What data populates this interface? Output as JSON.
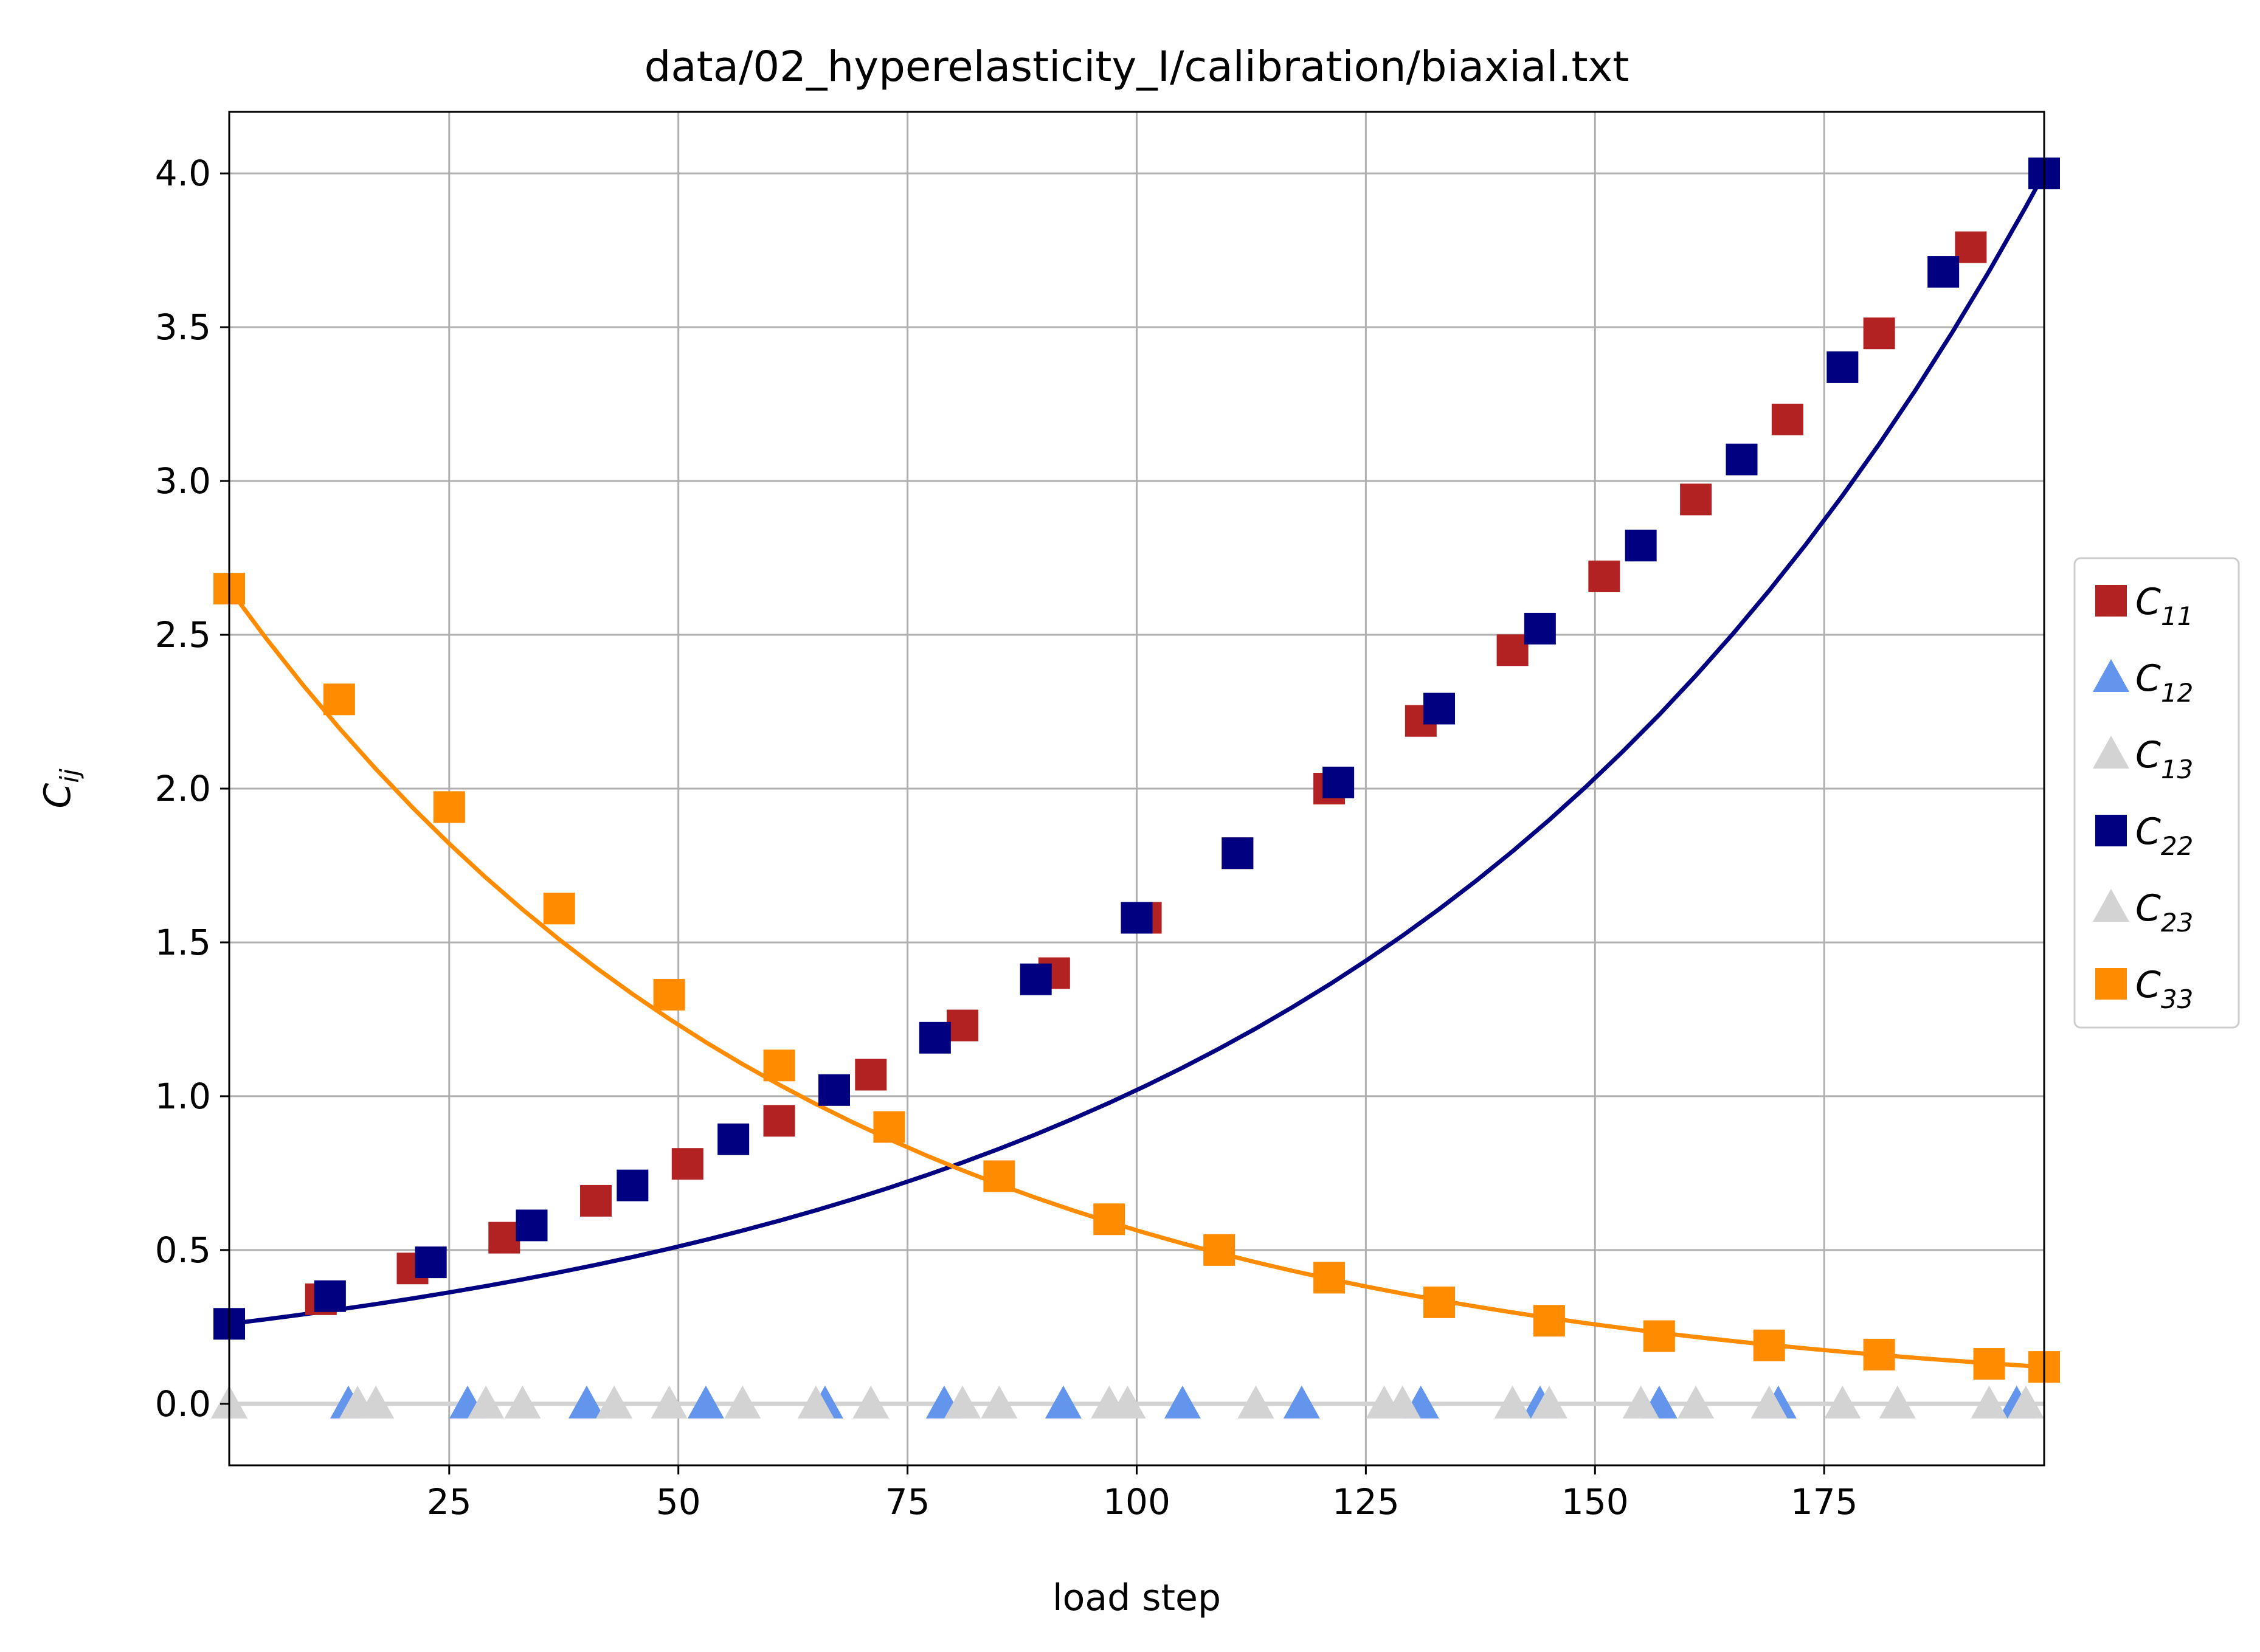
{
  "chart_data": {
    "type": "line",
    "title": "data/02_hyperelasticity_I/calibration/biaxial.txt",
    "xlabel": "load step",
    "ylabel": {
      "base": "C",
      "sub": "ij"
    },
    "xlim": [
      1,
      199
    ],
    "ylim": [
      -0.2,
      4.2
    ],
    "xticks": [
      25,
      50,
      75,
      100,
      125,
      150,
      175
    ],
    "yticks": [
      0.0,
      0.5,
      1.0,
      1.5,
      2.0,
      2.5,
      3.0,
      3.5,
      4.0
    ],
    "ytick_labels": [
      "0.0",
      "0.5",
      "1.0",
      "1.5",
      "2.0",
      "2.5",
      "3.0",
      "3.5",
      "4.0"
    ],
    "grid": true,
    "legend": {
      "placement": "right-outside"
    },
    "series": [
      {
        "name": "C11",
        "label_base": "C",
        "label_sub": "11",
        "color": "#b22222",
        "marker": "square",
        "line": false,
        "x": [
          11,
          21,
          31,
          41,
          51,
          61,
          71,
          81,
          91,
          101,
          111,
          121,
          131,
          141,
          151,
          161,
          171,
          181,
          191
        ],
        "y": [
          0.34,
          0.44,
          0.54,
          0.66,
          0.78,
          0.92,
          1.07,
          1.23,
          1.4,
          1.58,
          1.79,
          2.0,
          2.22,
          2.45,
          2.69,
          2.94,
          3.2,
          3.48,
          3.76
        ]
      },
      {
        "name": "C12",
        "label_base": "C",
        "label_sub": "12",
        "color": "#6495ed",
        "marker": "triangle",
        "line": false,
        "x": [
          14,
          27,
          40,
          53,
          66,
          79,
          92,
          105,
          118,
          131,
          144,
          157,
          170,
          196
        ],
        "y": [
          0,
          0,
          0,
          0,
          0,
          0,
          0,
          0,
          0,
          0,
          0,
          0,
          0,
          0
        ]
      },
      {
        "name": "C13",
        "label_base": "C",
        "label_sub": "13",
        "color": "#d3d3d3",
        "marker": "triangle",
        "line": false,
        "x": [
          1,
          17,
          33,
          49,
          65,
          81,
          97,
          113,
          129,
          145,
          161,
          177,
          193
        ],
        "y": [
          0,
          0,
          0,
          0,
          0,
          0,
          0,
          0,
          0,
          0,
          0,
          0,
          0
        ]
      },
      {
        "name": "C22",
        "label_base": "C",
        "label_sub": "22",
        "color": "#000080",
        "marker": "square",
        "line": true,
        "x": [
          1,
          12,
          23,
          34,
          45,
          56,
          67,
          78,
          89,
          100,
          111,
          122,
          133,
          144,
          155,
          166,
          177,
          188,
          199
        ],
        "y": [
          0.26,
          0.35,
          0.46,
          0.58,
          0.71,
          0.86,
          1.02,
          1.19,
          1.38,
          1.58,
          1.79,
          2.02,
          2.26,
          2.52,
          2.79,
          3.07,
          3.37,
          3.68,
          4.0
        ]
      },
      {
        "name": "C23",
        "label_base": "C",
        "label_sub": "23",
        "color": "#d3d3d3",
        "marker": "triangle",
        "line": true,
        "x": [
          1,
          15,
          29,
          43,
          57,
          71,
          85,
          99,
          113,
          127,
          141,
          155,
          169,
          183,
          197
        ],
        "y": [
          0,
          0,
          0,
          0,
          0,
          0,
          0,
          0,
          0,
          0,
          0,
          0,
          0,
          0,
          0
        ]
      },
      {
        "name": "C33",
        "label_base": "C",
        "label_sub": "33",
        "color": "#ff8c00",
        "marker": "square",
        "line": true,
        "x": [
          1,
          13,
          25,
          37,
          49,
          61,
          73,
          85,
          97,
          109,
          121,
          133,
          145,
          157,
          169,
          181,
          193,
          199
        ],
        "y": [
          2.65,
          2.29,
          1.94,
          1.61,
          1.33,
          1.1,
          0.9,
          0.74,
          0.6,
          0.5,
          0.41,
          0.33,
          0.27,
          0.22,
          0.19,
          0.16,
          0.13,
          0.12
        ]
      }
    ],
    "line_x": [
      1,
      5,
      9,
      13,
      17,
      21,
      25,
      29,
      33,
      37,
      41,
      45,
      49,
      53,
      57,
      61,
      65,
      69,
      73,
      77,
      81,
      85,
      89,
      93,
      97,
      101,
      105,
      109,
      113,
      117,
      121,
      125,
      129,
      133,
      137,
      141,
      145,
      149,
      153,
      157,
      161,
      165,
      169,
      173,
      177,
      181,
      185,
      189,
      193,
      197,
      199
    ],
    "line_order": [
      "C23",
      "C22",
      "C33"
    ]
  }
}
